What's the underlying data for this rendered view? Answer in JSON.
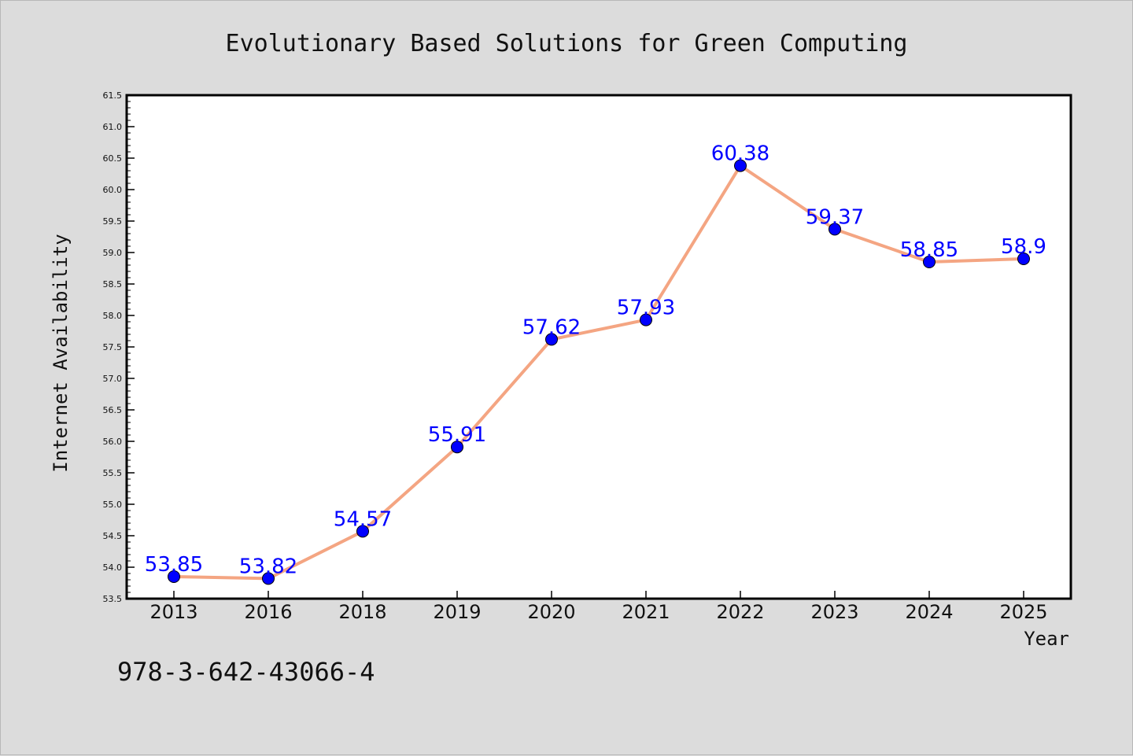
{
  "chart_data": {
    "type": "line",
    "title": "Evolutionary Based Solutions for Green Computing",
    "xlabel": "Year",
    "ylabel": "Internet Availability",
    "categories": [
      "2013",
      "2016",
      "2018",
      "2019",
      "2020",
      "2021",
      "2022",
      "2023",
      "2024",
      "2025"
    ],
    "series": [
      {
        "values": [
          53.85,
          53.82,
          54.57,
          55.91,
          57.62,
          57.93,
          60.38,
          59.37,
          58.85,
          58.9
        ],
        "labels": [
          "53.85",
          "53.82",
          "54.57",
          "55.91",
          "57.62",
          "57.93",
          "60.38",
          "59.37",
          "58.85",
          "58.9"
        ],
        "line_color": "#f4a582",
        "marker_color": "#0000ff"
      }
    ],
    "ylim": [
      53.5,
      61.5
    ],
    "yticks": [
      "53.5",
      "54.0",
      "54.5",
      "55.0",
      "55.5",
      "56.0",
      "56.5",
      "57.0",
      "57.5",
      "58.0",
      "58.5",
      "59.0",
      "59.5",
      "60.0",
      "60.5",
      "61.0",
      "61.5"
    ],
    "grid": false,
    "legend": "none",
    "data_label_color": "#0000ff"
  },
  "footer": {
    "isbn": "978-3-642-43066-4"
  }
}
